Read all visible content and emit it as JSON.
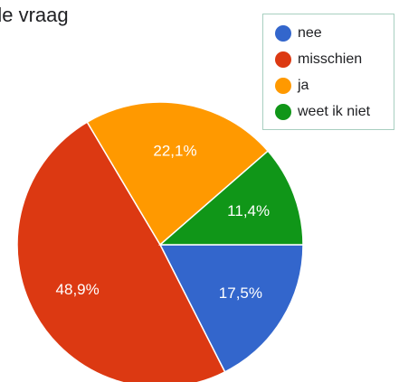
{
  "chart_data": {
    "type": "pie",
    "title": "de vraag",
    "categories": [
      "nee",
      "misschien",
      "ja",
      "weet ik niet"
    ],
    "values": [
      17.5,
      48.9,
      22.1,
      11.4
    ],
    "value_labels": [
      "17,5%",
      "48,9%",
      "22,1%",
      "11,4%"
    ],
    "colors": [
      "#3366cc",
      "#dc3912",
      "#ff9900",
      "#109618"
    ],
    "legend": "top-right"
  }
}
